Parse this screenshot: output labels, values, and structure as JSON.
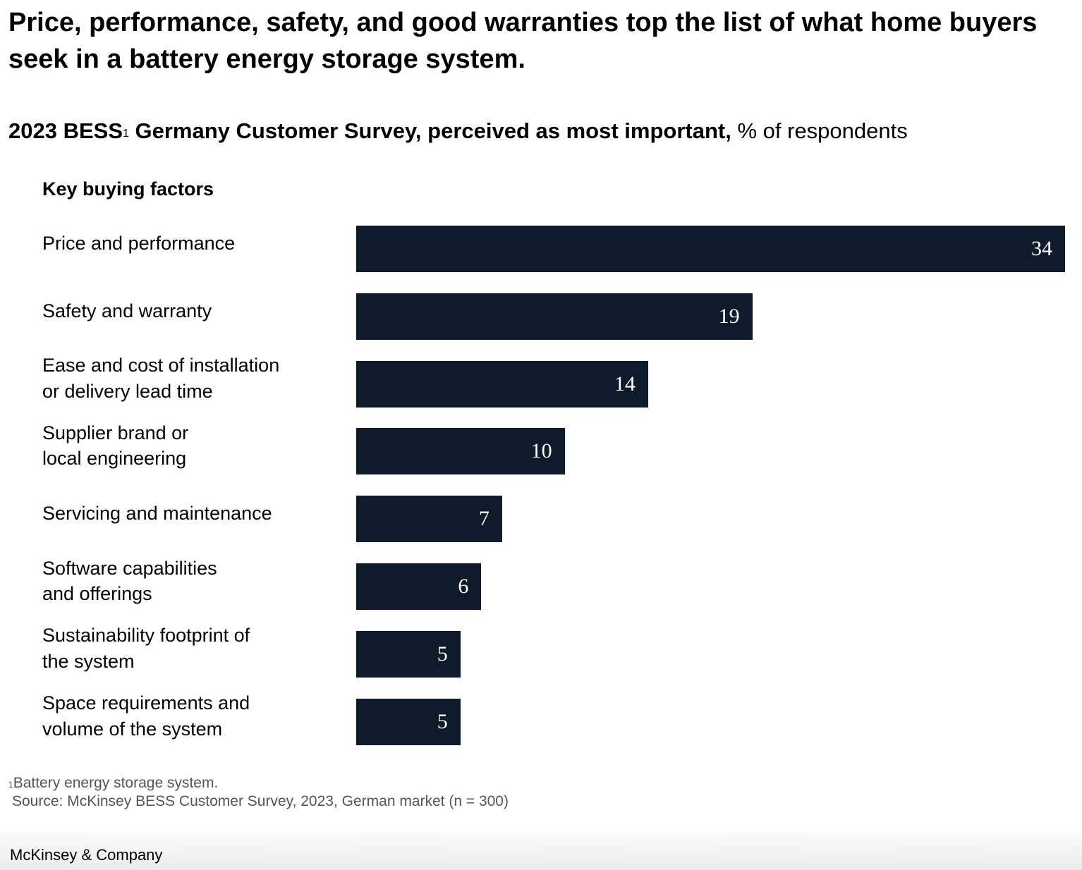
{
  "title": "Price, performance, safety, and good warranties top the list of what home buyers seek in a battery energy storage system.",
  "subtitle": {
    "main": "2023 BESS",
    "superscript": "1",
    "rest": " Germany Customer Survey, perceived as most important,",
    "unit": " % of respondents"
  },
  "section_label": "Key buying factors",
  "colors": {
    "bar": "#0f1b2a",
    "bar_label": "#ffffff"
  },
  "chart_data": {
    "type": "bar",
    "orientation": "horizontal",
    "categories": [
      "Price and performance",
      "Safety and warranty",
      "Ease and cost of installation\nor delivery lead time",
      "Supplier brand or\nlocal engineering",
      "Servicing and maintenance",
      "Software capabilities\nand offerings",
      "Sustainability footprint of\nthe system",
      "Space requirements and\nvolume of the system"
    ],
    "values": [
      34,
      19,
      14,
      10,
      7,
      6,
      5,
      5
    ],
    "xlim": [
      0,
      34
    ],
    "grid": false,
    "legend": "none"
  },
  "footnote": {
    "superscript": "1",
    "text": "Battery energy storage system."
  },
  "source": "Source: McKinsey BESS Customer Survey, 2023, German market (n = 300)",
  "brand": "McKinsey & Company"
}
